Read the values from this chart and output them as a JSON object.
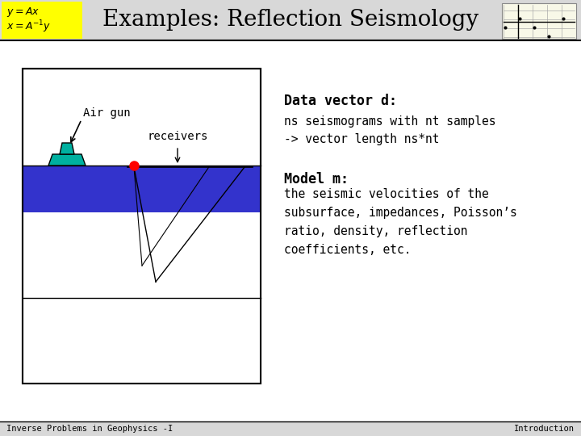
{
  "title": "Examples: Reflection Seismology",
  "title_fontsize": 20,
  "slide_bg": "#ffffff",
  "data_vector_label": "Data vector d:",
  "data_vector_text1": "ns seismograms with nt samples",
  "data_vector_text2": "-> vector length ns*nt",
  "model_label": "Model m:",
  "model_text": "the seismic velocities of the\nsubsurface, impedances, Poisson’s\nratio, density, reflection\ncoefficients, etc.",
  "footer_left": "Inverse Problems in Geophysics -I",
  "footer_right": "Introduction",
  "yellow_box_color": "#ffff00",
  "blue_band_color": "#3333cc",
  "sea_color": "#00b0a0",
  "airgun_label": "Air gun",
  "receivers_label": "receivers",
  "header_bg": "#d8d8d8",
  "footer_bg": "#d8d8d8"
}
